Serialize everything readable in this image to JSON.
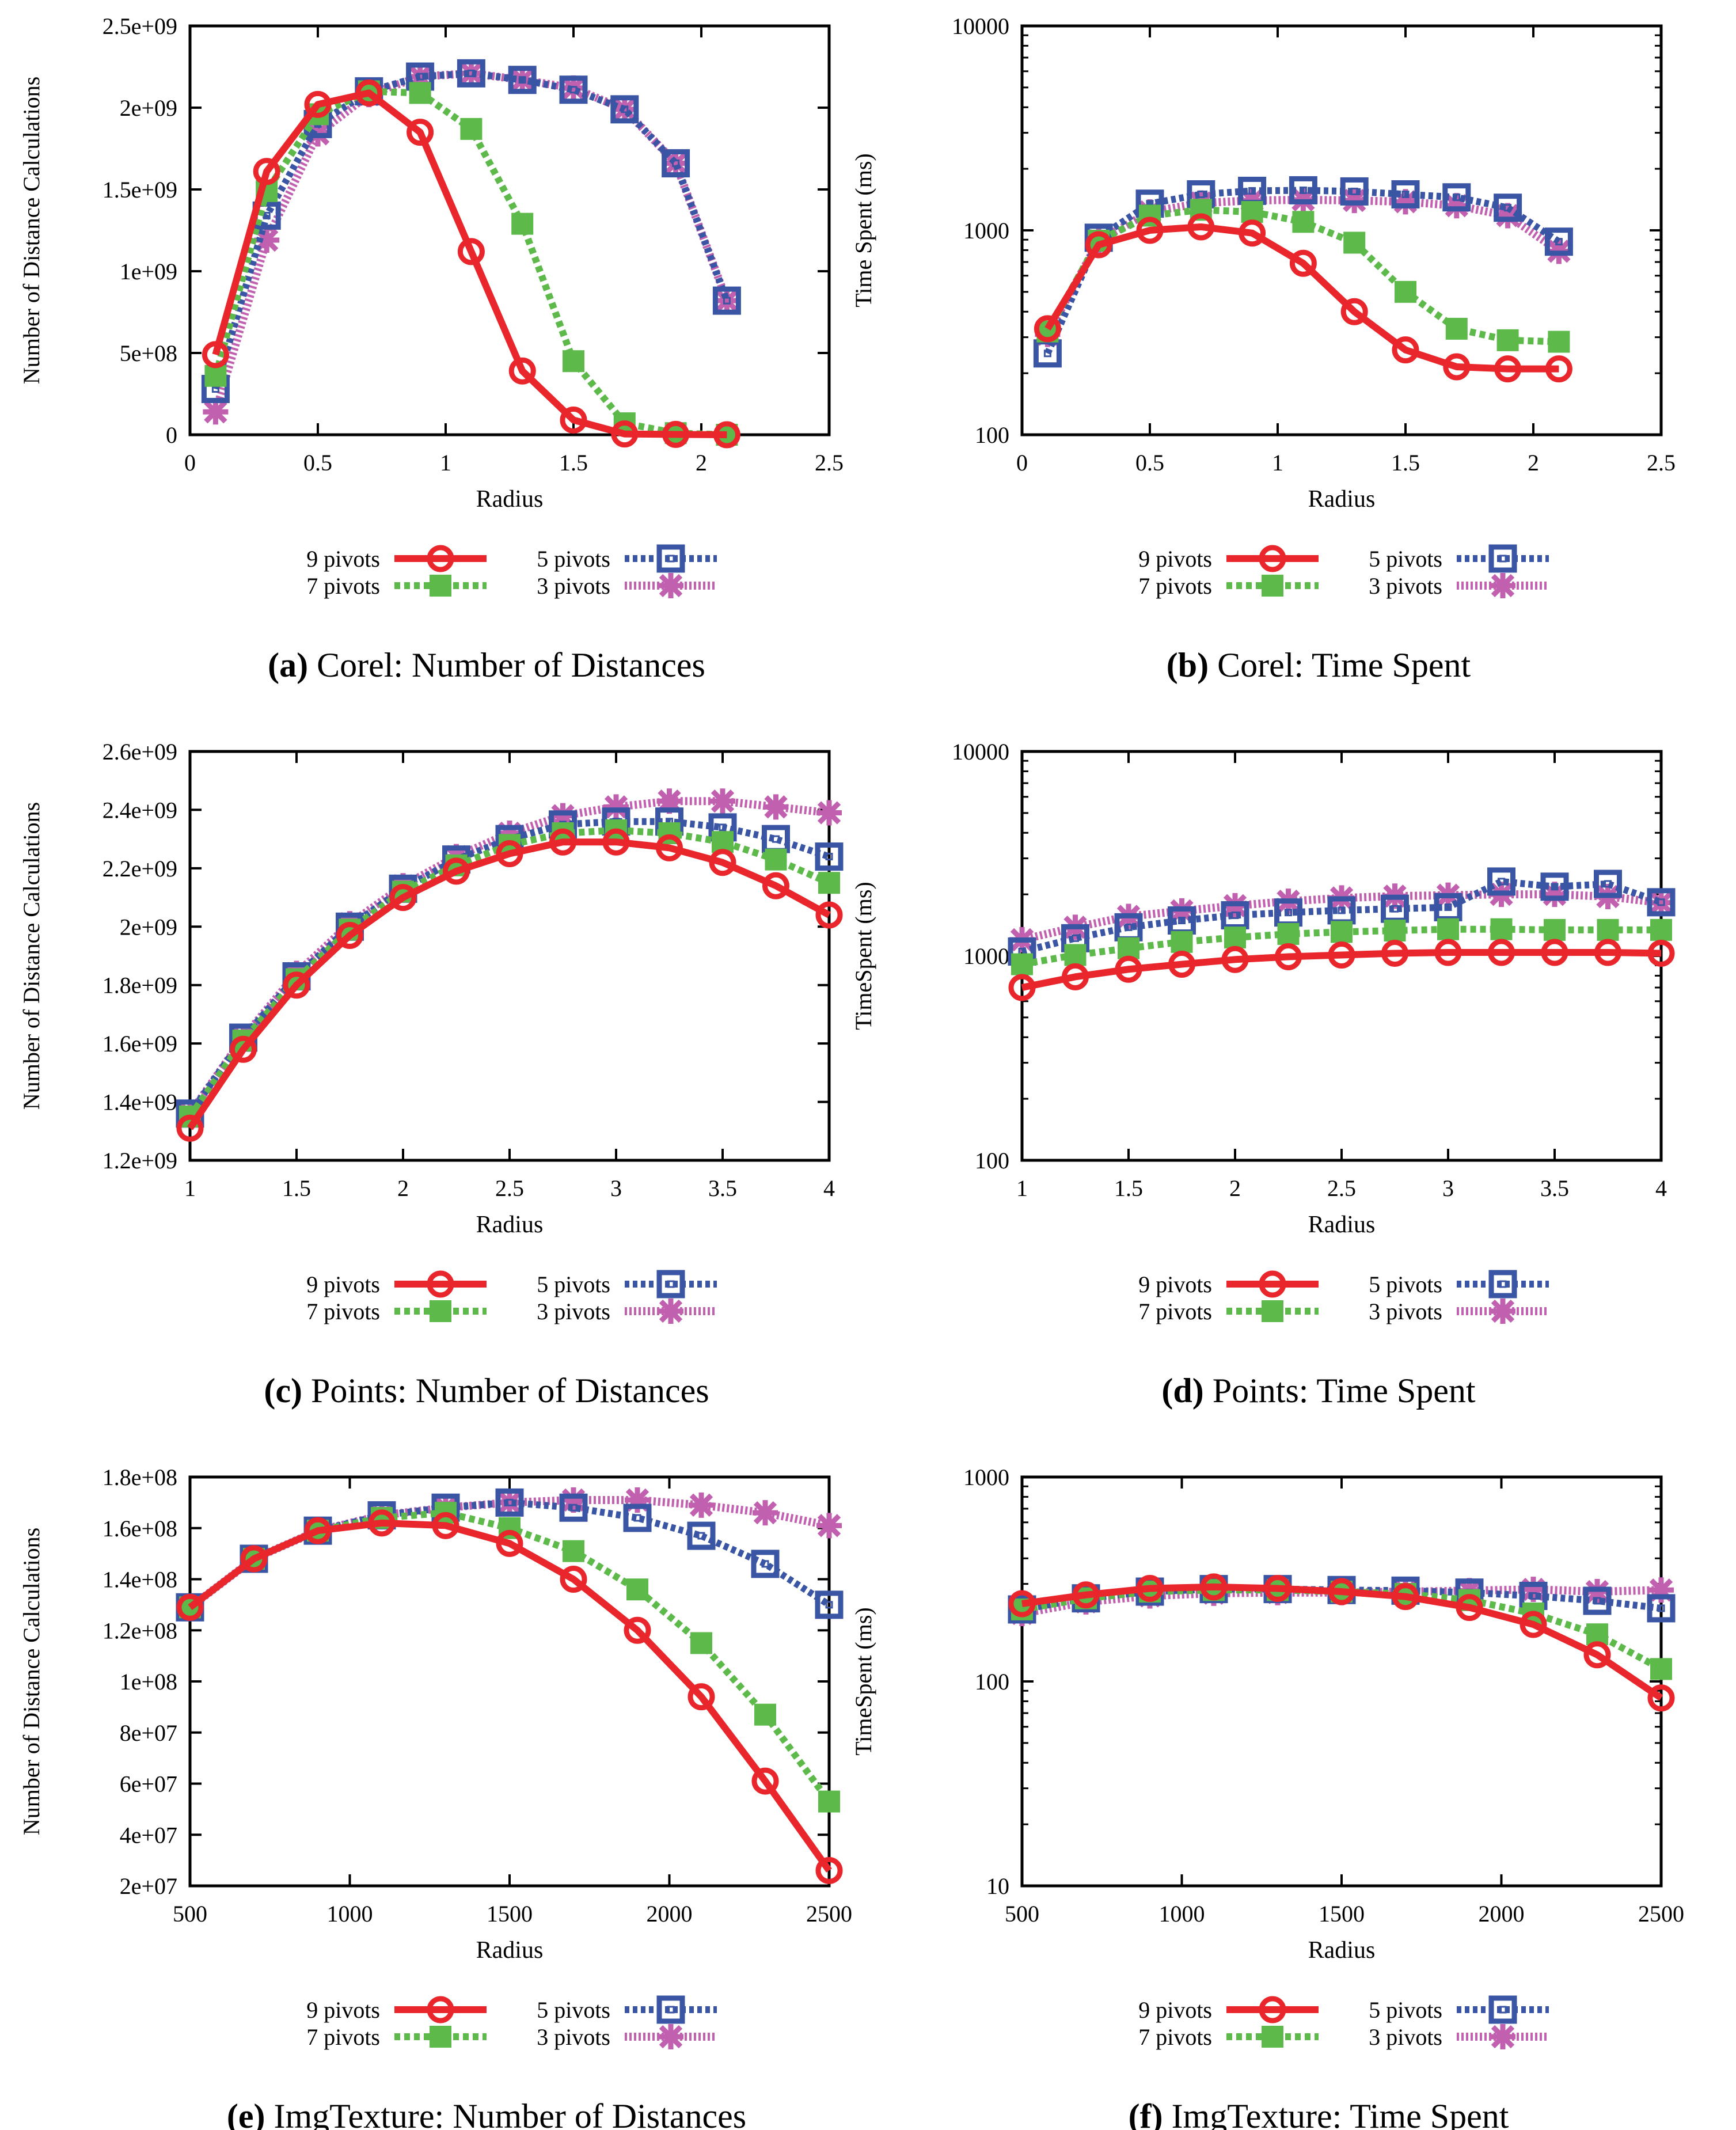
{
  "chart_data": [
    {
      "type": "line",
      "title_tag": "(a)",
      "title": "Corel: Number of Distances",
      "xlabel": "Radius",
      "ylabel": "Number of Distance Calculations",
      "yscale": "linear",
      "xlim": [
        0,
        2.5
      ],
      "ylim": [
        0,
        2500000000
      ],
      "xticks": [
        0,
        0.5,
        1,
        1.5,
        2,
        2.5
      ],
      "xtick_labels": [
        "0",
        "0.5",
        "1",
        "1.5",
        "2",
        "2.5"
      ],
      "yticks": [
        0,
        500000000,
        1000000000,
        1500000000,
        2000000000,
        2500000000
      ],
      "ytick_labels": [
        "0",
        "5e+08",
        "1e+09",
        "1.5e+09",
        "2e+09",
        "2.5e+09"
      ],
      "x": [
        0.1,
        0.3,
        0.5,
        0.7,
        0.9,
        1.1,
        1.3,
        1.5,
        1.7,
        1.9,
        2.1
      ],
      "series": [
        {
          "name": "9 pivots",
          "values": [
            490000000,
            1610000000,
            2020000000,
            2090000000,
            1850000000,
            1120000000,
            390000000,
            90000000,
            5000000,
            2000000,
            0
          ]
        },
        {
          "name": "7 pivots",
          "values": [
            360000000,
            1490000000,
            1960000000,
            2100000000,
            2090000000,
            1870000000,
            1290000000,
            450000000,
            70000000,
            10000000,
            0
          ]
        },
        {
          "name": "5 pivots",
          "values": [
            280000000,
            1340000000,
            1900000000,
            2100000000,
            2190000000,
            2210000000,
            2170000000,
            2110000000,
            1990000000,
            1660000000,
            820000000
          ]
        },
        {
          "name": "3 pivots",
          "values": [
            140000000,
            1190000000,
            1840000000,
            2080000000,
            2190000000,
            2210000000,
            2170000000,
            2120000000,
            1990000000,
            1660000000,
            820000000
          ]
        }
      ]
    },
    {
      "type": "line",
      "title_tag": "(b)",
      "title": "Corel: Time Spent",
      "xlabel": "Radius",
      "ylabel": "Time Spent (ms)",
      "yscale": "log",
      "xlim": [
        0,
        2.5
      ],
      "ylim": [
        100,
        10000
      ],
      "xticks": [
        0,
        0.5,
        1,
        1.5,
        2,
        2.5
      ],
      "xtick_labels": [
        "0",
        "0.5",
        "1",
        "1.5",
        "2",
        "2.5"
      ],
      "yticks": [
        100,
        1000,
        10000
      ],
      "ytick_labels": [
        "100",
        "1000",
        "10000"
      ],
      "x": [
        0.1,
        0.3,
        0.5,
        0.7,
        0.9,
        1.1,
        1.3,
        1.5,
        1.7,
        1.9,
        2.1
      ],
      "series": [
        {
          "name": "9 pivots",
          "values": [
            330,
            850,
            1000,
            1040,
            970,
            690,
            400,
            260,
            215,
            210,
            210
          ]
        },
        {
          "name": "7 pivots",
          "values": [
            320,
            890,
            1180,
            1260,
            1230,
            1100,
            870,
            500,
            330,
            290,
            285
          ]
        },
        {
          "name": "5 pivots",
          "values": [
            250,
            920,
            1350,
            1500,
            1560,
            1570,
            1550,
            1500,
            1450,
            1290,
            880
          ]
        },
        {
          "name": "3 pivots",
          "values": [
            310,
            890,
            1230,
            1360,
            1400,
            1410,
            1400,
            1380,
            1320,
            1180,
            790
          ]
        }
      ]
    },
    {
      "type": "line",
      "title_tag": "(c)",
      "title": "Points: Number of Distances",
      "xlabel": "Radius",
      "ylabel": "Number of Distance Calculations",
      "yscale": "linear",
      "xlim": [
        1,
        4
      ],
      "ylim": [
        1200000000,
        2600000000
      ],
      "xticks": [
        1,
        1.5,
        2,
        2.5,
        3,
        3.5,
        4
      ],
      "xtick_labels": [
        "1",
        "1.5",
        "2",
        "2.5",
        "3",
        "3.5",
        "4"
      ],
      "yticks": [
        1200000000,
        1400000000,
        1600000000,
        1800000000,
        2000000000,
        2200000000,
        2400000000,
        2600000000
      ],
      "ytick_labels": [
        "1.2e+09",
        "1.4e+09",
        "1.6e+09",
        "1.8e+09",
        "2e+09",
        "2.2e+09",
        "2.4e+09",
        "2.6e+09"
      ],
      "x": [
        1,
        1.25,
        1.5,
        1.75,
        2,
        2.25,
        2.5,
        2.75,
        3,
        3.25,
        3.5,
        3.75,
        4
      ],
      "series": [
        {
          "name": "9 pivots",
          "values": [
            1310000000,
            1580000000,
            1800000000,
            1970000000,
            2100000000,
            2190000000,
            2250000000,
            2290000000,
            2290000000,
            2270000000,
            2220000000,
            2140000000,
            2040000000
          ]
        },
        {
          "name": "7 pivots",
          "values": [
            1350000000,
            1610000000,
            1820000000,
            1990000000,
            2120000000,
            2210000000,
            2280000000,
            2320000000,
            2330000000,
            2320000000,
            2290000000,
            2230000000,
            2150000000
          ]
        },
        {
          "name": "5 pivots",
          "values": [
            1360000000,
            1620000000,
            1830000000,
            2000000000,
            2130000000,
            2230000000,
            2300000000,
            2350000000,
            2360000000,
            2360000000,
            2340000000,
            2300000000,
            2240000000
          ]
        },
        {
          "name": "3 pivots",
          "values": [
            1360000000,
            1620000000,
            1840000000,
            2010000000,
            2140000000,
            2240000000,
            2320000000,
            2380000000,
            2410000000,
            2430000000,
            2430000000,
            2410000000,
            2390000000
          ]
        }
      ]
    },
    {
      "type": "line",
      "title_tag": "(d)",
      "title": "Points: Time Spent",
      "xlabel": "Radius",
      "ylabel": "TimeSpent (ms)",
      "yscale": "log",
      "xlim": [
        1,
        4
      ],
      "ylim": [
        100,
        10000
      ],
      "xticks": [
        1,
        1.5,
        2,
        2.5,
        3,
        3.5,
        4
      ],
      "xtick_labels": [
        "1",
        "1.5",
        "2",
        "2.5",
        "3",
        "3.5",
        "4"
      ],
      "yticks": [
        100,
        1000,
        10000
      ],
      "ytick_labels": [
        "100",
        "1000",
        "10000"
      ],
      "x": [
        1,
        1.25,
        1.5,
        1.75,
        2,
        2.25,
        2.5,
        2.75,
        3,
        3.25,
        3.5,
        3.75,
        4
      ],
      "series": [
        {
          "name": "9 pivots",
          "values": [
            700,
            790,
            860,
            910,
            960,
            990,
            1010,
            1030,
            1040,
            1040,
            1040,
            1040,
            1030
          ]
        },
        {
          "name": "7 pivots",
          "values": [
            910,
            1010,
            1090,
            1170,
            1230,
            1280,
            1310,
            1330,
            1350,
            1350,
            1340,
            1340,
            1340
          ]
        },
        {
          "name": "5 pivots",
          "values": [
            1050,
            1220,
            1380,
            1490,
            1580,
            1630,
            1670,
            1700,
            1730,
            2310,
            2180,
            2250,
            1830
          ]
        },
        {
          "name": "3 pivots",
          "values": [
            1200,
            1380,
            1560,
            1660,
            1760,
            1850,
            1920,
            1960,
            1980,
            2000,
            2000,
            1950,
            1820
          ]
        }
      ]
    },
    {
      "type": "line",
      "title_tag": "(e)",
      "title": "ImgTexture: Number of Distances",
      "xlabel": "Radius",
      "ylabel": "Number of Distance Calculations",
      "yscale": "linear",
      "xlim": [
        500,
        2500
      ],
      "ylim": [
        20000000,
        180000000
      ],
      "xticks": [
        500,
        1000,
        1500,
        2000,
        2500
      ],
      "xtick_labels": [
        "500",
        "1000",
        "1500",
        "2000",
        "2500"
      ],
      "yticks": [
        20000000,
        40000000,
        60000000,
        80000000,
        100000000,
        120000000,
        140000000,
        160000000,
        180000000
      ],
      "ytick_labels": [
        "2e+07",
        "4e+07",
        "6e+07",
        "8e+07",
        "1e+08",
        "1.2e+08",
        "1.4e+08",
        "1.6e+08",
        "1.8e+08"
      ],
      "x": [
        500,
        700,
        900,
        1100,
        1300,
        1500,
        1700,
        1900,
        2100,
        2300,
        2500
      ],
      "series": [
        {
          "name": "9 pivots",
          "values": [
            129000000,
            148000000,
            159000000,
            162000000,
            161000000,
            154000000,
            140000000,
            120000000,
            94000000,
            61000000,
            26000000
          ]
        },
        {
          "name": "7 pivots",
          "values": [
            129000000,
            148000000,
            159000000,
            164000000,
            166000000,
            160000000,
            151000000,
            136000000,
            115000000,
            87000000,
            53000000
          ]
        },
        {
          "name": "5 pivots",
          "values": [
            129000000,
            148000000,
            159000000,
            165000000,
            168000000,
            170000000,
            168000000,
            164000000,
            157000000,
            146000000,
            130000000
          ]
        },
        {
          "name": "3 pivots",
          "values": [
            129000000,
            148000000,
            159000000,
            165000000,
            168000000,
            170000000,
            171000000,
            171000000,
            169000000,
            166000000,
            161000000
          ]
        }
      ]
    },
    {
      "type": "line",
      "title_tag": "(f)",
      "title": "ImgTexture: Time Spent",
      "xlabel": "Radius",
      "ylabel": "TimeSpent (ms)",
      "yscale": "log",
      "xlim": [
        500,
        2500
      ],
      "ylim": [
        10,
        1000
      ],
      "xticks": [
        500,
        1000,
        1500,
        2000,
        2500
      ],
      "xtick_labels": [
        "500",
        "1000",
        "1500",
        "2000",
        "2500"
      ],
      "yticks": [
        10,
        100,
        1000
      ],
      "ytick_labels": [
        "10",
        "100",
        "1000"
      ],
      "x": [
        500,
        700,
        900,
        1100,
        1300,
        1500,
        1700,
        1900,
        2100,
        2300,
        2500
      ],
      "series": [
        {
          "name": "9 pivots",
          "values": [
            240,
            265,
            285,
            290,
            285,
            275,
            260,
            230,
            190,
            135,
            83
          ]
        },
        {
          "name": "7 pivots",
          "values": [
            225,
            255,
            275,
            280,
            280,
            275,
            268,
            250,
            215,
            170,
            115
          ]
        },
        {
          "name": "5 pivots",
          "values": [
            225,
            255,
            275,
            283,
            283,
            280,
            278,
            272,
            262,
            248,
            228
          ]
        },
        {
          "name": "3 pivots",
          "values": [
            215,
            245,
            262,
            270,
            272,
            272,
            275,
            278,
            282,
            275,
            280
          ]
        }
      ]
    }
  ],
  "legend_labels": [
    "9 pivots",
    "7 pivots",
    "5 pivots",
    "3 pivots"
  ],
  "colors": {
    "9 pivots": "#e8262b",
    "7 pivots": "#5cb94a",
    "5 pivots": "#3b55a5",
    "3 pivots": "#c260b0",
    "axis": "#000000"
  }
}
